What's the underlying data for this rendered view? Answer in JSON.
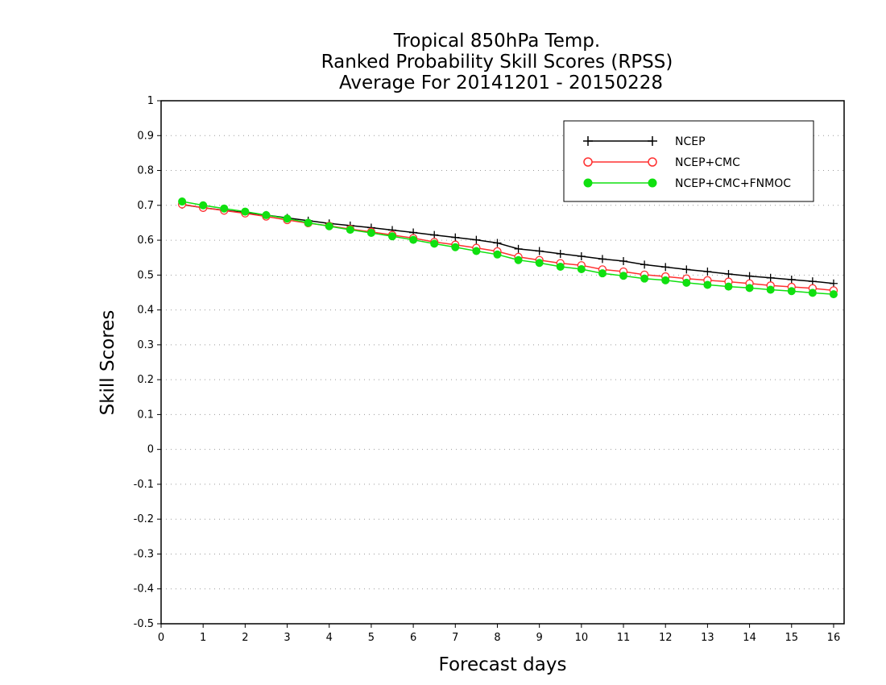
{
  "chart_data": {
    "type": "line",
    "title_lines": [
      "Tropical 850hPa Temp.",
      "Ranked Probability Skill Scores (RPSS)",
      "Average For 20141201 - 20150228"
    ],
    "xlabel": "Forecast days",
    "ylabel": "Skill Scores",
    "xlim": [
      0,
      16.25
    ],
    "ylim": [
      -0.5,
      1
    ],
    "x_ticks": [
      0,
      1,
      2,
      3,
      4,
      5,
      6,
      7,
      8,
      9,
      10,
      11,
      12,
      13,
      14,
      15,
      16
    ],
    "y_ticks": [
      -0.5,
      -0.4,
      -0.3,
      -0.2,
      -0.1,
      0,
      0.1,
      0.2,
      0.3,
      0.4,
      0.5,
      0.6,
      0.7,
      0.8,
      0.9,
      1
    ],
    "y_tick_labels": [
      "-0.5",
      "-0.4",
      "-0.3",
      "-0.2",
      "-0.1",
      "0",
      "0.1",
      "0.2",
      "0.3",
      "0.4",
      "0.5",
      "0.6",
      "0.7",
      "0.8",
      "0.9",
      "1"
    ],
    "grid": "horizontal dotted",
    "legend_position": "top-right",
    "x": [
      0.5,
      1,
      1.5,
      2,
      2.5,
      3,
      3.5,
      4,
      4.5,
      5,
      5.5,
      6,
      6.5,
      7,
      7.5,
      8,
      8.5,
      9,
      9.5,
      10,
      10.5,
      11,
      11.5,
      12,
      12.5,
      13,
      13.5,
      14,
      14.5,
      15,
      15.5,
      16
    ],
    "series": [
      {
        "name": "NCEP",
        "color": "#000000",
        "marker": "plus",
        "values": [
          0.702,
          0.693,
          0.686,
          0.679,
          0.672,
          0.664,
          0.656,
          0.648,
          0.642,
          0.636,
          0.629,
          0.622,
          0.615,
          0.608,
          0.601,
          0.592,
          0.575,
          0.569,
          0.561,
          0.554,
          0.546,
          0.54,
          0.53,
          0.523,
          0.516,
          0.51,
          0.503,
          0.497,
          0.492,
          0.487,
          0.482,
          0.476
        ]
      },
      {
        "name": "NCEP+CMC",
        "color": "#ff3030",
        "marker": "open-circle",
        "values": [
          0.703,
          0.693,
          0.685,
          0.677,
          0.668,
          0.658,
          0.649,
          0.641,
          0.632,
          0.624,
          0.615,
          0.606,
          0.595,
          0.587,
          0.578,
          0.568,
          0.552,
          0.543,
          0.534,
          0.528,
          0.516,
          0.51,
          0.501,
          0.496,
          0.49,
          0.485,
          0.481,
          0.476,
          0.47,
          0.466,
          0.462,
          0.456
        ]
      },
      {
        "name": "NCEP+CMC+FNMOC",
        "color": "#10e010",
        "marker": "filled-circle",
        "values": [
          0.711,
          0.7,
          0.691,
          0.682,
          0.672,
          0.662,
          0.65,
          0.64,
          0.63,
          0.621,
          0.611,
          0.601,
          0.59,
          0.58,
          0.569,
          0.559,
          0.543,
          0.535,
          0.524,
          0.517,
          0.505,
          0.498,
          0.49,
          0.485,
          0.478,
          0.472,
          0.467,
          0.463,
          0.458,
          0.454,
          0.449,
          0.445
        ]
      }
    ]
  }
}
